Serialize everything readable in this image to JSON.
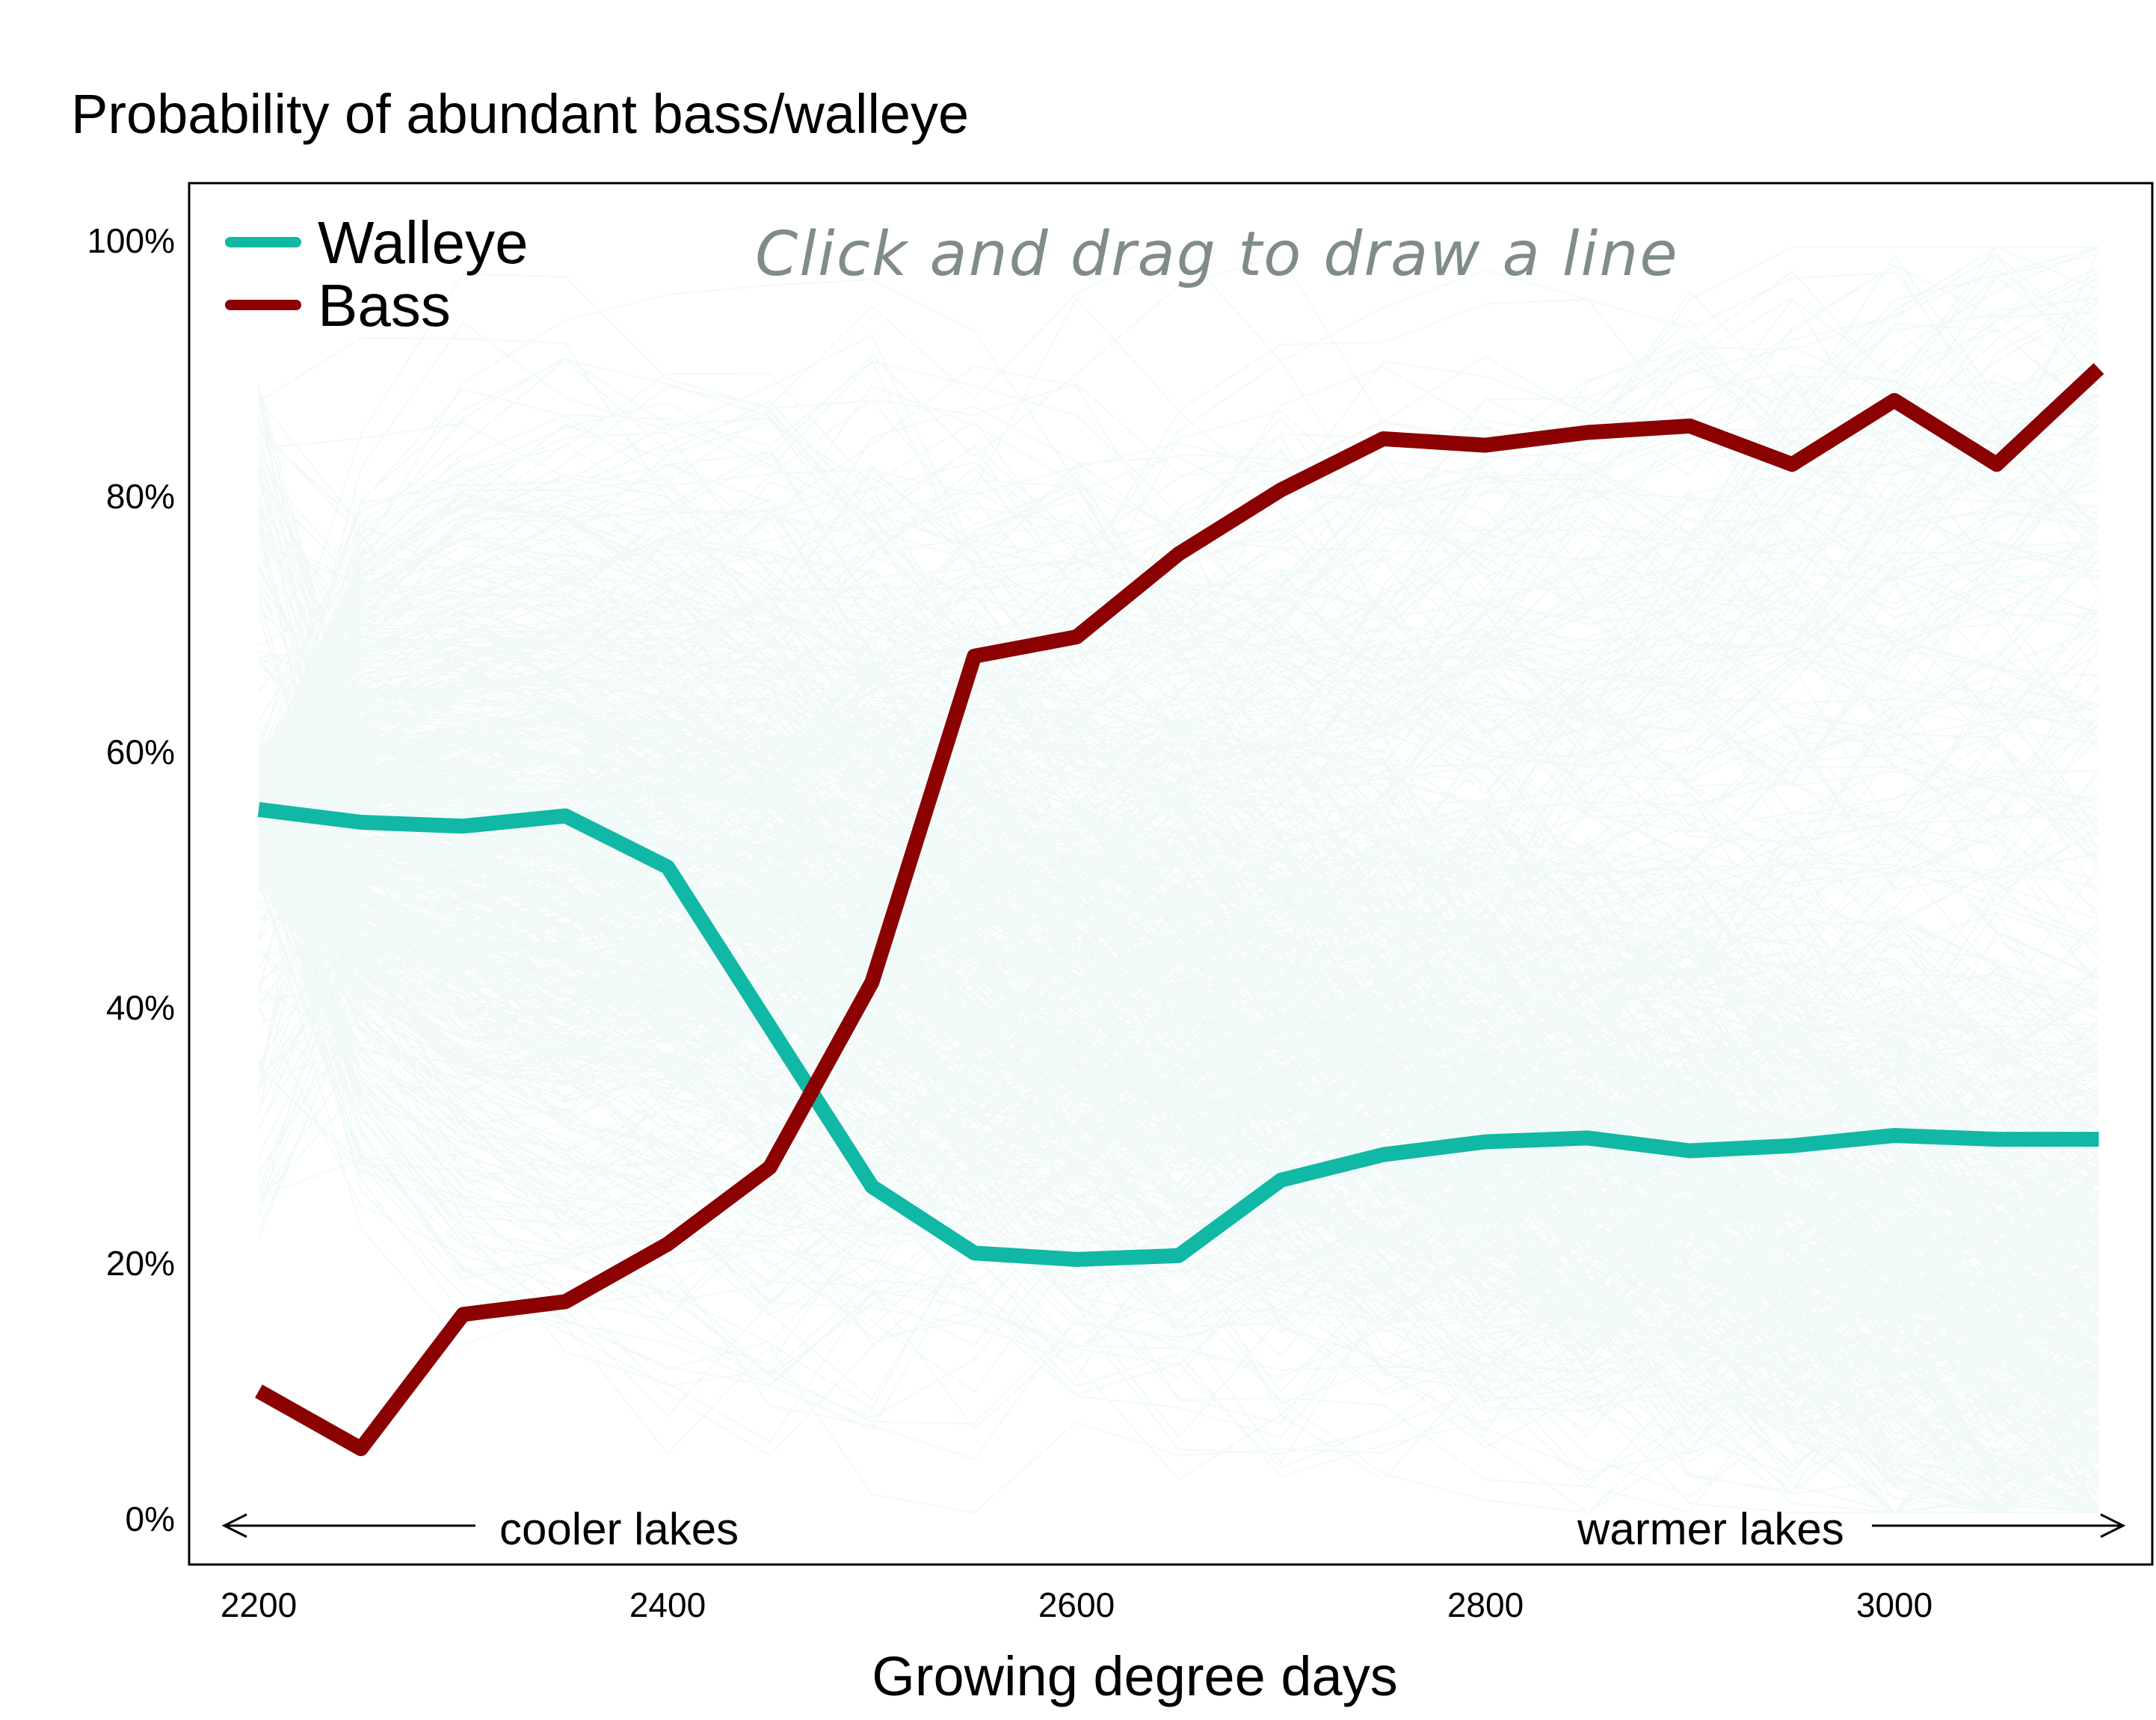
{
  "chart_data": {
    "type": "line",
    "title": "Probability of abundant bass/walleye",
    "xlabel": "Growing degree days",
    "ylabel": "",
    "xlim": [
      2140,
      3120
    ],
    "ylim": [
      -2,
      103
    ],
    "grid": false,
    "legend_position": "top-left",
    "x_ticks": [
      2200,
      2400,
      2600,
      2800,
      3000
    ],
    "x_tick_labels": [
      "2200",
      "2400",
      "2600",
      "2800",
      "3000"
    ],
    "y_ticks": [
      0,
      20,
      40,
      60,
      80,
      100
    ],
    "y_tick_labels": [
      "0%",
      "20%",
      "40%",
      "60%",
      "80%",
      "100%"
    ],
    "x": [
      2200,
      2250,
      2300,
      2350,
      2400,
      2450,
      2500,
      2550,
      2600,
      2650,
      2700,
      2750,
      2800,
      2850,
      2900,
      2950,
      3000,
      3050,
      3100
    ],
    "series": [
      {
        "name": "Walleye",
        "color": "#11b8a5",
        "values": [
          55.5,
          54.5,
          54.2,
          55.0,
          51.0,
          38.5,
          26.0,
          20.8,
          20.3,
          20.6,
          26.5,
          28.5,
          29.5,
          29.8,
          28.8,
          29.2,
          30.0,
          29.7,
          29.7
        ]
      },
      {
        "name": "Bass",
        "color": "#8b0000",
        "values": [
          10.0,
          5.5,
          16.0,
          17.0,
          21.5,
          27.5,
          42.0,
          67.5,
          69.0,
          75.5,
          80.5,
          84.5,
          84.0,
          85.0,
          85.5,
          82.5,
          87.5,
          82.5,
          90.0
        ]
      }
    ],
    "background_series": {
      "name": "",
      "color": "#3cbcac",
      "count": 650,
      "description_note": ""
    },
    "annotations": {
      "left_text": "cooler lakes",
      "right_text": "warmer lakes",
      "hint_text": "Click and drag to draw a line"
    }
  }
}
